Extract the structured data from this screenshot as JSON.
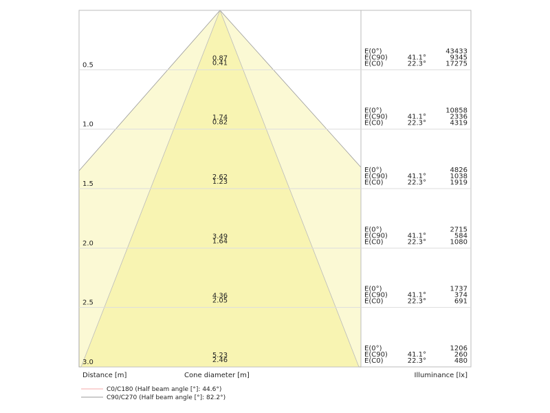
{
  "diagram": {
    "row_labels": [
      "E(0°)",
      "E(C90)",
      "E(C0)"
    ],
    "rows": [
      {
        "distance": "0.5",
        "diameters": [
          "0.87",
          "0.41"
        ],
        "angles": [
          "41.1°",
          "22.3°"
        ],
        "values": [
          "43433",
          "9345",
          "17275"
        ]
      },
      {
        "distance": "1.0",
        "diameters": [
          "1.74",
          "0.82"
        ],
        "angles": [
          "41.1°",
          "22.3°"
        ],
        "values": [
          "10858",
          "2336",
          "4319"
        ]
      },
      {
        "distance": "1.5",
        "diameters": [
          "2.62",
          "1.23"
        ],
        "angles": [
          "41.1°",
          "22.3°"
        ],
        "values": [
          "4826",
          "1038",
          "1919"
        ]
      },
      {
        "distance": "2.0",
        "diameters": [
          "3.49",
          "1.64"
        ],
        "angles": [
          "41.1°",
          "22.3°"
        ],
        "values": [
          "2715",
          "584",
          "1080"
        ]
      },
      {
        "distance": "2.5",
        "diameters": [
          "4.36",
          "2.05"
        ],
        "angles": [
          "41.1°",
          "22.3°"
        ],
        "values": [
          "1737",
          "374",
          "691"
        ]
      },
      {
        "distance": "3.0",
        "diameters": [
          "5.23",
          "2.46"
        ],
        "angles": [
          "41.1°",
          "22.3°"
        ],
        "values": [
          "1206",
          "260",
          "480"
        ]
      }
    ],
    "footer": {
      "distance": "Distance [m]",
      "diameter": "Cone diameter [m]",
      "illuminance": "Illuminance [lx]"
    },
    "legend": [
      "C0/C180 (Half beam angle [°]: 44.6°)",
      "C90/C270 (Half beam angle [°]: 82.2°)"
    ]
  }
}
